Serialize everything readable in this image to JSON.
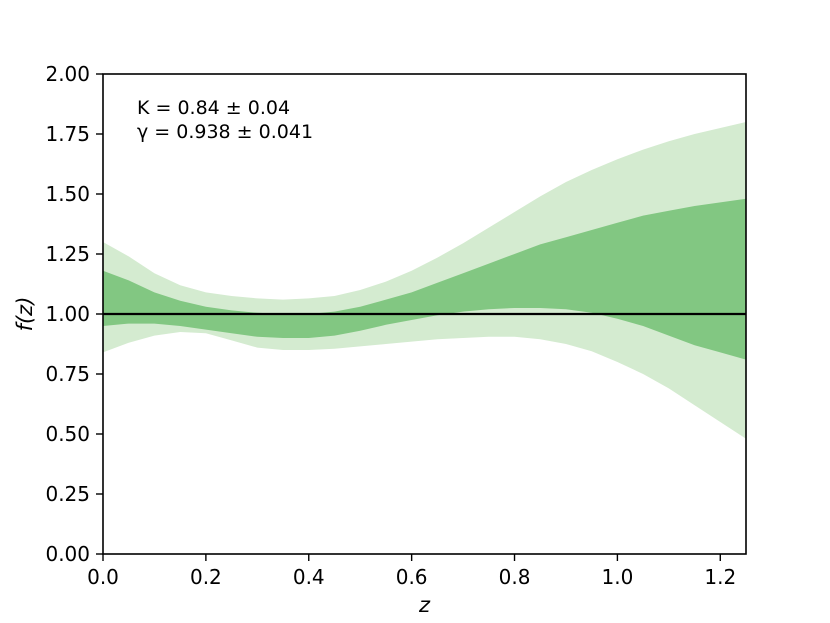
{
  "chart_data": {
    "type": "area",
    "xlabel": "z",
    "ylabel": "f(z)",
    "xlim": [
      0,
      1.25
    ],
    "ylim": [
      0,
      2.0
    ],
    "x_ticks": [
      "0.0",
      "0.2",
      "0.4",
      "0.6",
      "0.8",
      "1.0",
      "1.2"
    ],
    "y_ticks": [
      "0.00",
      "0.25",
      "0.50",
      "0.75",
      "1.00",
      "1.25",
      "1.50",
      "1.75",
      "2.00"
    ],
    "grid": false,
    "reference_line": {
      "y": 1.0,
      "color": "#000000"
    },
    "annotations": [
      "K =  0.84 ±  0.04",
      "γ =  0.938 ±  0.041"
    ],
    "series": [
      {
        "type": "band",
        "color": "#d4ebd0",
        "x": [
          0.0,
          0.05,
          0.1,
          0.15,
          0.2,
          0.25,
          0.3,
          0.35,
          0.4,
          0.45,
          0.5,
          0.55,
          0.6,
          0.65,
          0.7,
          0.75,
          0.8,
          0.85,
          0.9,
          0.95,
          1.0,
          1.05,
          1.1,
          1.15,
          1.2,
          1.25
        ],
        "lower": [
          0.84,
          0.88,
          0.91,
          0.925,
          0.92,
          0.89,
          0.86,
          0.85,
          0.85,
          0.855,
          0.865,
          0.875,
          0.885,
          0.895,
          0.9,
          0.905,
          0.905,
          0.895,
          0.875,
          0.845,
          0.8,
          0.75,
          0.69,
          0.62,
          0.55,
          0.48
        ],
        "upper": [
          1.3,
          1.24,
          1.17,
          1.12,
          1.09,
          1.075,
          1.065,
          1.06,
          1.065,
          1.075,
          1.1,
          1.135,
          1.18,
          1.235,
          1.295,
          1.36,
          1.425,
          1.49,
          1.55,
          1.6,
          1.645,
          1.685,
          1.72,
          1.75,
          1.775,
          1.8
        ]
      },
      {
        "type": "band",
        "color": "#82c782",
        "x": [
          0.0,
          0.05,
          0.1,
          0.15,
          0.2,
          0.25,
          0.3,
          0.35,
          0.4,
          0.45,
          0.5,
          0.55,
          0.6,
          0.65,
          0.7,
          0.75,
          0.8,
          0.85,
          0.9,
          0.95,
          1.0,
          1.05,
          1.1,
          1.15,
          1.2,
          1.25
        ],
        "lower": [
          0.95,
          0.96,
          0.96,
          0.95,
          0.935,
          0.92,
          0.905,
          0.9,
          0.9,
          0.91,
          0.93,
          0.955,
          0.975,
          0.995,
          1.01,
          1.02,
          1.025,
          1.025,
          1.02,
          1.005,
          0.98,
          0.95,
          0.91,
          0.87,
          0.84,
          0.81
        ],
        "upper": [
          1.18,
          1.14,
          1.09,
          1.055,
          1.03,
          1.015,
          1.005,
          1.0,
          1.0,
          1.01,
          1.03,
          1.06,
          1.09,
          1.13,
          1.17,
          1.21,
          1.25,
          1.29,
          1.32,
          1.35,
          1.38,
          1.41,
          1.43,
          1.45,
          1.465,
          1.48
        ]
      }
    ]
  }
}
